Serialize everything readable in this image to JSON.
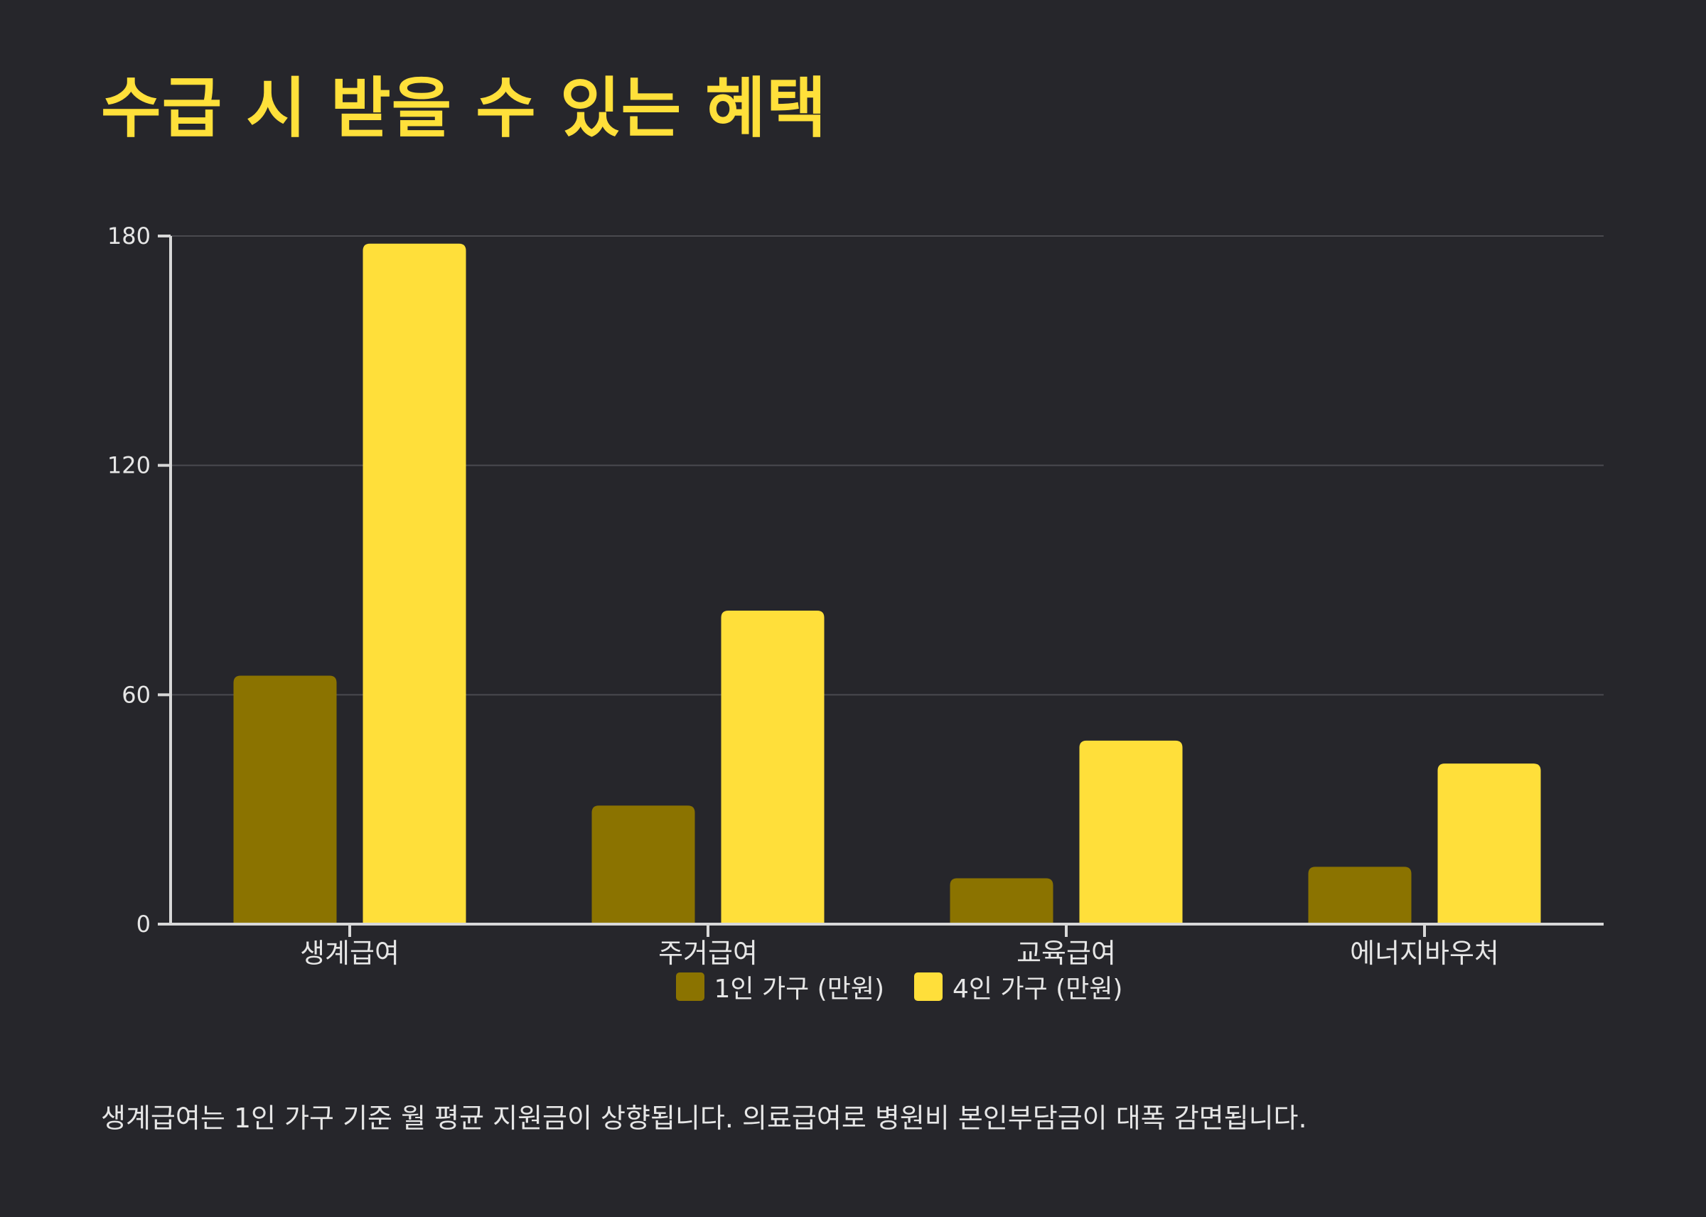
{
  "title": "수급 시 받을 수 있는 혜택",
  "footnote": "생계급여는 1인 가구 기준 월 평균 지원금이 상향됩니다. 의료급여로 병원비 본인부담금이 대폭 감면됩니다.",
  "colors": {
    "background": "#26262b",
    "series1": "#8b7300",
    "series2": "#ffdf3a",
    "title": "#ffe03a",
    "grid": "#4a4a4f",
    "axis": "#d8d8d8"
  },
  "chart_data": {
    "type": "bar",
    "title": "",
    "xlabel": "",
    "ylabel": "",
    "categories": [
      "생계급여",
      "주거급여",
      "교육급여",
      "에너지바우처"
    ],
    "series": [
      {
        "name": "1인 가구 (만원)",
        "values": [
          65,
          31,
          12,
          15
        ]
      },
      {
        "name": "4인 가구 (만원)",
        "values": [
          178,
          82,
          48,
          42
        ]
      }
    ],
    "ylim": [
      0,
      180
    ],
    "yticks": [
      0,
      60,
      120,
      180
    ],
    "ytick_labels": [
      "0",
      "60",
      "120",
      "180"
    ],
    "grid": true,
    "legend_position": "bottom-center"
  }
}
